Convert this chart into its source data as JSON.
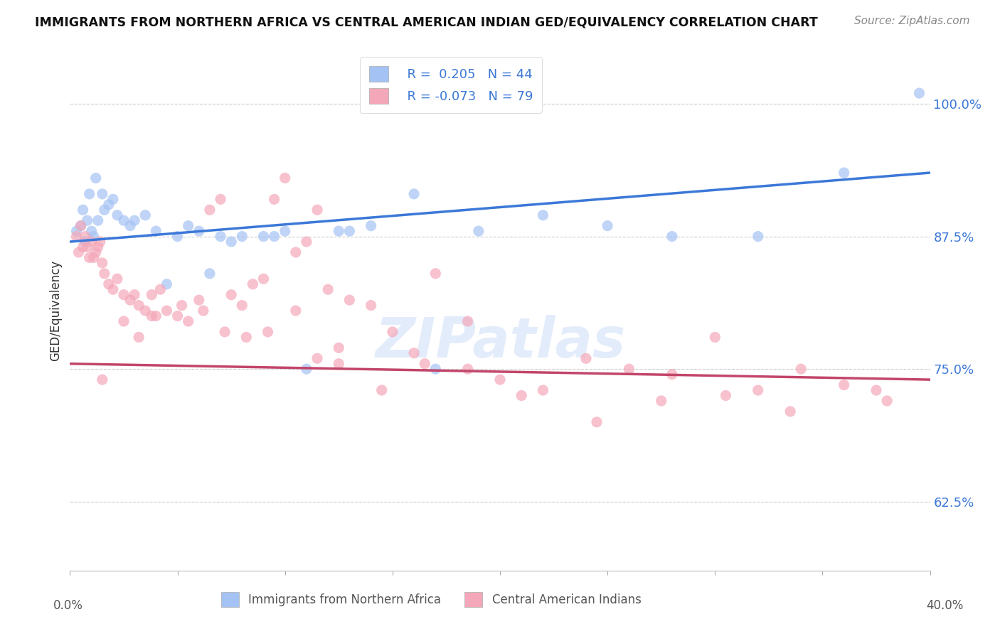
{
  "title": "IMMIGRANTS FROM NORTHERN AFRICA VS CENTRAL AMERICAN INDIAN GED/EQUIVALENCY CORRELATION CHART",
  "source": "Source: ZipAtlas.com",
  "ylabel": "GED/Equivalency",
  "yticks": [
    62.5,
    75.0,
    87.5,
    100.0
  ],
  "ytick_labels": [
    "62.5%",
    "75.0%",
    "87.5%",
    "100.0%"
  ],
  "xmin": 0.0,
  "xmax": 40.0,
  "ymin": 56.0,
  "ymax": 105.0,
  "legend_r1": "R =  0.205",
  "legend_n1": "N = 44",
  "legend_r2": "R = -0.073",
  "legend_n2": "N = 79",
  "color_blue": "#a4c2f4",
  "color_pink": "#f4a7b9",
  "color_blue_line": "#3c78d8",
  "color_pink_line": "#c2456a",
  "watermark": "ZIPatlas",
  "blue_line_x0": 0.0,
  "blue_line_y0": 87.0,
  "blue_line_x1": 40.0,
  "blue_line_y1": 93.5,
  "pink_line_x0": 0.0,
  "pink_line_y0": 75.5,
  "pink_line_x1": 40.0,
  "pink_line_y1": 74.0,
  "blue_points_x": [
    0.3,
    0.5,
    0.6,
    0.7,
    0.8,
    0.9,
    1.0,
    1.1,
    1.2,
    1.3,
    1.5,
    1.6,
    1.8,
    2.0,
    2.2,
    2.5,
    2.8,
    3.0,
    3.5,
    4.0,
    5.0,
    6.0,
    7.0,
    8.0,
    9.5,
    11.0,
    12.5,
    14.0,
    16.0,
    19.0,
    22.0,
    25.0,
    28.0,
    32.0,
    36.0,
    39.5,
    4.5,
    5.5,
    6.5,
    7.5,
    9.0,
    10.0,
    13.0,
    17.0
  ],
  "blue_points_y": [
    88.0,
    88.5,
    90.0,
    87.0,
    89.0,
    91.5,
    88.0,
    87.5,
    93.0,
    89.0,
    91.5,
    90.0,
    90.5,
    91.0,
    89.5,
    89.0,
    88.5,
    89.0,
    89.5,
    88.0,
    87.5,
    88.0,
    87.5,
    87.5,
    87.5,
    75.0,
    88.0,
    88.5,
    91.5,
    88.0,
    89.5,
    88.5,
    87.5,
    87.5,
    93.5,
    101.0,
    83.0,
    88.5,
    84.0,
    87.0,
    87.5,
    88.0,
    88.0,
    75.0
  ],
  "pink_points_x": [
    0.3,
    0.4,
    0.5,
    0.6,
    0.7,
    0.8,
    0.9,
    1.0,
    1.1,
    1.2,
    1.3,
    1.4,
    1.5,
    1.6,
    1.8,
    2.0,
    2.2,
    2.5,
    2.8,
    3.0,
    3.2,
    3.5,
    3.8,
    4.0,
    4.5,
    5.0,
    5.5,
    6.0,
    6.5,
    7.0,
    7.5,
    8.0,
    8.5,
    9.0,
    9.5,
    10.0,
    10.5,
    11.0,
    11.5,
    12.0,
    12.5,
    13.0,
    14.0,
    15.0,
    16.0,
    17.0,
    18.5,
    20.0,
    22.0,
    24.0,
    26.0,
    28.0,
    30.0,
    32.0,
    34.0,
    36.0,
    38.0,
    1.5,
    2.5,
    3.2,
    3.8,
    4.2,
    5.2,
    6.2,
    7.2,
    8.2,
    9.2,
    10.5,
    11.5,
    12.5,
    14.5,
    16.5,
    18.5,
    21.0,
    24.5,
    27.5,
    30.5,
    33.5,
    37.5
  ],
  "pink_points_y": [
    87.5,
    86.0,
    88.5,
    86.5,
    87.5,
    86.5,
    85.5,
    87.0,
    85.5,
    86.0,
    86.5,
    87.0,
    85.0,
    84.0,
    83.0,
    82.5,
    83.5,
    82.0,
    81.5,
    82.0,
    81.0,
    80.5,
    82.0,
    80.0,
    80.5,
    80.0,
    79.5,
    81.5,
    90.0,
    91.0,
    82.0,
    81.0,
    83.0,
    83.5,
    91.0,
    93.0,
    86.0,
    87.0,
    90.0,
    82.5,
    77.0,
    81.5,
    81.0,
    78.5,
    76.5,
    84.0,
    79.5,
    74.0,
    73.0,
    76.0,
    75.0,
    74.5,
    78.0,
    73.0,
    75.0,
    73.5,
    72.0,
    74.0,
    79.5,
    78.0,
    80.0,
    82.5,
    81.0,
    80.5,
    78.5,
    78.0,
    78.5,
    80.5,
    76.0,
    75.5,
    73.0,
    75.5,
    75.0,
    72.5,
    70.0,
    72.0,
    72.5,
    71.0,
    73.0
  ]
}
